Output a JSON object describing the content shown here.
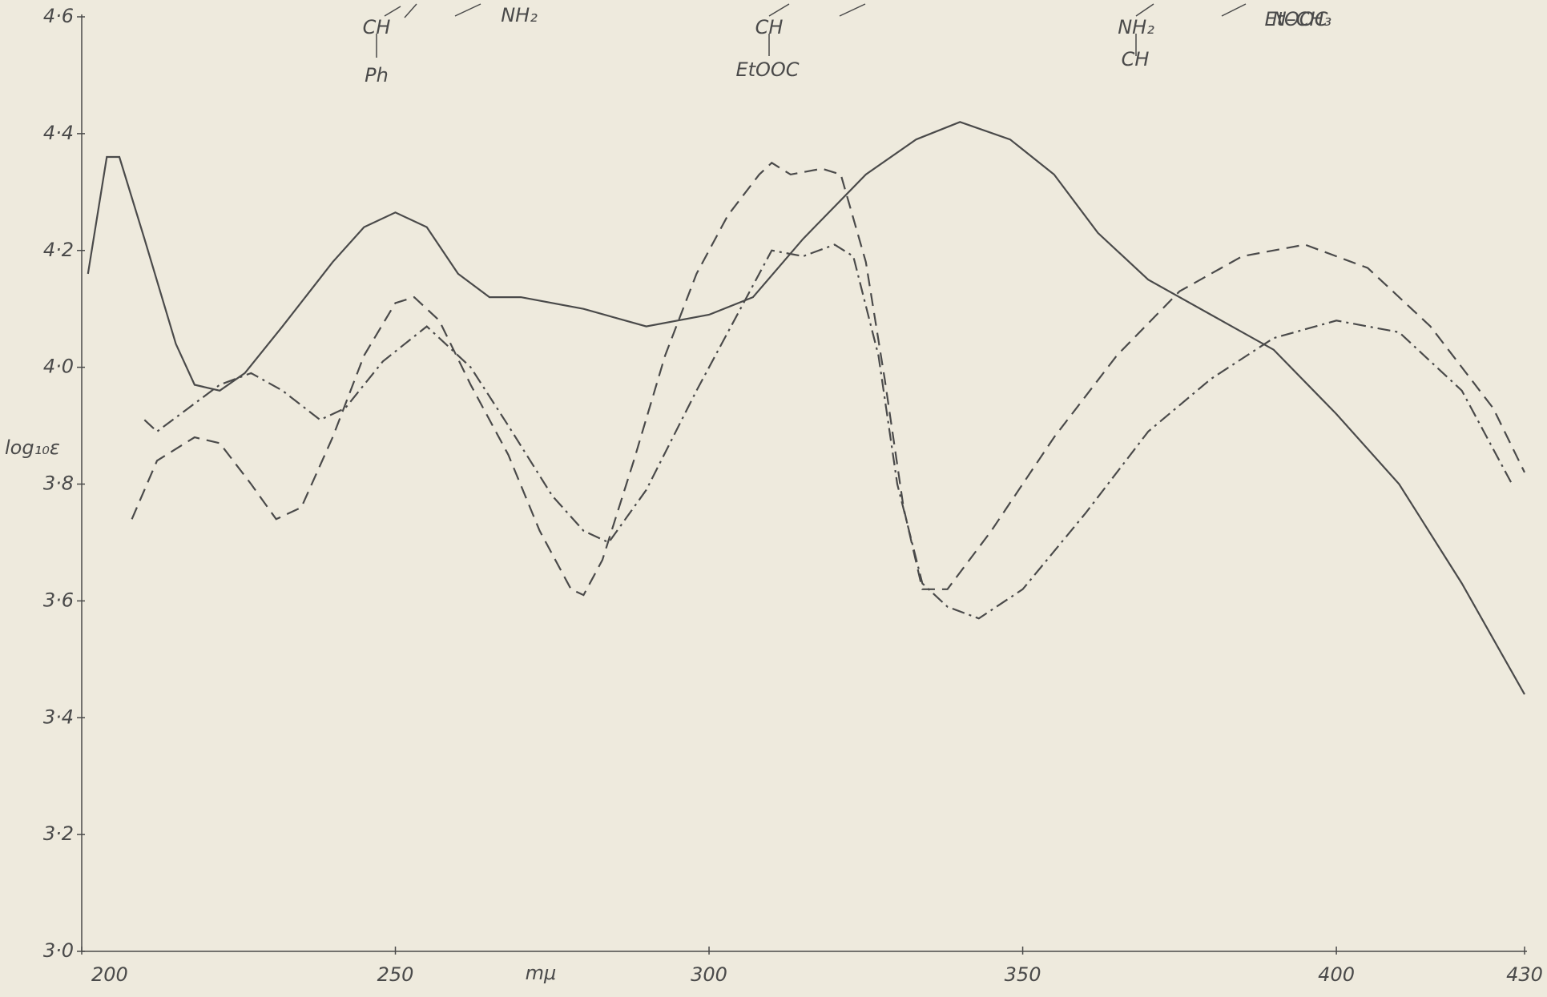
{
  "chart_data": {
    "type": "line",
    "xlabel": "mμ",
    "ylabel": "log₁₀ε",
    "xlim": [
      200,
      430
    ],
    "xticks": [
      200,
      250,
      300,
      350,
      400,
      430
    ],
    "ylim": [
      3.0,
      4.6
    ],
    "yticks": [
      {
        "value": 3.0,
        "label": "3·0"
      },
      {
        "value": 3.2,
        "label": "3·2"
      },
      {
        "value": 3.4,
        "label": "3·4"
      },
      {
        "value": 3.6,
        "label": "3·6"
      },
      {
        "value": 3.8,
        "label": "3·8"
      },
      {
        "value": 4.0,
        "label": "4·0"
      },
      {
        "value": 4.2,
        "label": "4·2"
      },
      {
        "value": 4.4,
        "label": "4·4"
      },
      {
        "value": 4.6,
        "label": "4·6"
      }
    ],
    "annotations": [
      "CH",
      "Ph",
      "NH₂",
      "CH",
      "EtOOC",
      "NH₂",
      "CH",
      "EtOOC",
      "N–CH₃"
    ],
    "series": [
      {
        "color": "#4a4a4a",
        "line_style": "solid",
        "x": [
          201,
          204,
          206,
          210,
          215,
          218,
          222,
          226,
          232,
          240,
          245,
          250,
          255,
          260,
          265,
          270,
          280,
          290,
          300,
          307,
          315,
          325,
          333,
          340,
          348,
          355,
          362,
          370,
          380,
          390,
          400,
          410,
          420,
          430
        ],
        "values": [
          4.16,
          4.36,
          4.36,
          4.22,
          4.04,
          3.97,
          3.96,
          3.99,
          4.07,
          4.18,
          4.24,
          4.265,
          4.24,
          4.16,
          4.12,
          4.12,
          4.1,
          4.07,
          4.09,
          4.12,
          4.22,
          4.33,
          4.39,
          4.42,
          4.39,
          4.33,
          4.23,
          4.15,
          4.09,
          4.03,
          3.92,
          3.8,
          3.63,
          3.44
        ]
      },
      {
        "color": "#4a4a4a",
        "line_style": "dashed",
        "x": [
          208,
          212,
          218,
          222,
          227,
          231,
          235,
          240,
          245,
          250,
          253,
          257,
          262,
          268,
          273,
          278,
          280,
          283,
          288,
          293,
          298,
          303,
          308,
          310,
          313,
          318,
          321,
          325,
          328,
          331,
          334,
          338,
          345,
          355,
          365,
          375,
          385,
          395,
          405,
          415,
          425,
          430
        ],
        "values": [
          3.74,
          3.84,
          3.88,
          3.87,
          3.8,
          3.74,
          3.76,
          3.88,
          4.02,
          4.11,
          4.12,
          4.08,
          3.97,
          3.85,
          3.72,
          3.62,
          3.61,
          3.67,
          3.84,
          4.02,
          4.16,
          4.26,
          4.33,
          4.35,
          4.33,
          4.34,
          4.33,
          4.18,
          3.98,
          3.76,
          3.62,
          3.62,
          3.72,
          3.88,
          4.02,
          4.13,
          4.19,
          4.21,
          4.17,
          4.07,
          3.93,
          3.82
        ]
      },
      {
        "color": "#4a4a4a",
        "line_style": "dashdot",
        "x": [
          210,
          212,
          217,
          222,
          227,
          232,
          238,
          242,
          248,
          255,
          262,
          268,
          275,
          280,
          284,
          290,
          298,
          305,
          310,
          315,
          320,
          323,
          327,
          330,
          334,
          338,
          343,
          350,
          360,
          370,
          380,
          390,
          400,
          410,
          420,
          428
        ],
        "values": [
          3.91,
          3.89,
          3.93,
          3.97,
          3.99,
          3.96,
          3.91,
          3.93,
          4.01,
          4.07,
          4.0,
          3.9,
          3.78,
          3.72,
          3.7,
          3.79,
          3.96,
          4.1,
          4.2,
          4.19,
          4.21,
          4.19,
          4.02,
          3.8,
          3.63,
          3.59,
          3.57,
          3.62,
          3.75,
          3.89,
          3.98,
          4.05,
          4.08,
          4.06,
          3.96,
          3.8
        ]
      }
    ]
  }
}
